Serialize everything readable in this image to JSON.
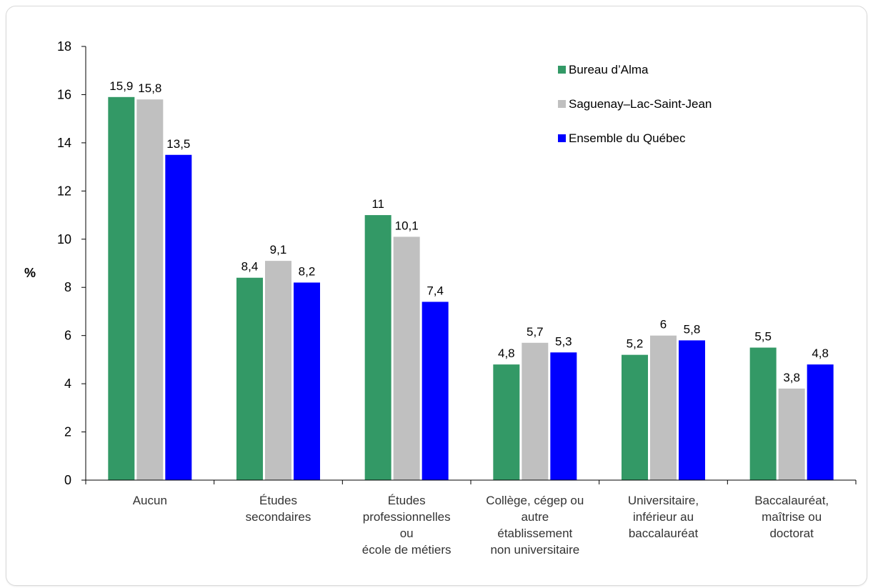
{
  "chart_data": {
    "type": "bar",
    "title": "",
    "xlabel": "",
    "ylabel": "%",
    "ylim": [
      0,
      18
    ],
    "yticks": [
      0,
      2,
      4,
      6,
      8,
      10,
      12,
      14,
      16,
      18
    ],
    "grid": false,
    "legend_position": "top-right",
    "categories": [
      [
        "Aucun"
      ],
      [
        "Études",
        "secondaires"
      ],
      [
        "Études",
        "professionnelles",
        "ou",
        "école de métiers"
      ],
      [
        "Collège, cégep ou",
        "autre",
        "établissement",
        "non universitaire"
      ],
      [
        "Universitaire,",
        "inférieur au",
        "baccalauréat"
      ],
      [
        "Baccalauréat,",
        "maîtrise ou",
        "doctorat"
      ]
    ],
    "series": [
      {
        "name": "Bureau d’Alma",
        "color": "#339966",
        "values": [
          15.9,
          8.4,
          11,
          4.8,
          5.2,
          5.5
        ],
        "labels": [
          "15,9",
          "8,4",
          "11",
          "4,8",
          "5,2",
          "5,5"
        ]
      },
      {
        "name": "Saguenay–Lac-Saint-Jean",
        "color": "#c0c0c0",
        "values": [
          15.8,
          9.1,
          10.1,
          5.7,
          6,
          3.8
        ],
        "labels": [
          "15,8",
          "9,1",
          "10,1",
          "5,7",
          "6",
          "3,8"
        ]
      },
      {
        "name": "Ensemble du Québec",
        "color": "#0000ff",
        "values": [
          13.5,
          8.2,
          7.4,
          5.3,
          5.8,
          4.8
        ],
        "labels": [
          "13,5",
          "8,2",
          "7,4",
          "5,3",
          "5,8",
          "4,8"
        ]
      }
    ]
  }
}
